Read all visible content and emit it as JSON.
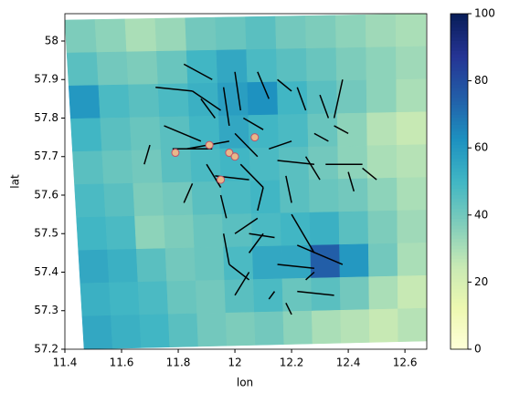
{
  "chart_data": {
    "type": "mesh",
    "xlabel": "lon",
    "ylabel": "lat",
    "xlim": [
      11.4,
      12.677
    ],
    "ylim": [
      57.2,
      58.071
    ],
    "xticks": [
      11.4,
      11.6,
      11.8,
      12.0,
      12.2,
      12.4,
      12.6
    ],
    "yticks": [
      57.2,
      57.3,
      57.4,
      57.5,
      57.6,
      57.7,
      57.8,
      57.9,
      58.0
    ],
    "colormap": "YlGnBu",
    "clim": [
      0,
      100
    ],
    "cticks": [
      0,
      20,
      40,
      60,
      80,
      100
    ],
    "grid": [
      [
        38,
        35,
        30,
        33,
        40,
        42,
        45,
        40,
        38,
        35,
        32,
        30
      ],
      [
        45,
        40,
        38,
        42,
        50,
        55,
        48,
        45,
        42,
        38,
        35,
        32
      ],
      [
        60,
        48,
        45,
        48,
        52,
        58,
        62,
        50,
        45,
        40,
        35,
        30
      ],
      [
        50,
        45,
        42,
        45,
        50,
        55,
        50,
        48,
        42,
        35,
        28,
        25
      ],
      [
        45,
        42,
        40,
        45,
        48,
        50,
        48,
        45,
        40,
        35,
        30,
        28
      ],
      [
        48,
        45,
        38,
        40,
        45,
        48,
        50,
        45,
        42,
        40,
        35,
        30
      ],
      [
        50,
        48,
        35,
        38,
        42,
        45,
        48,
        50,
        52,
        45,
        38,
        32
      ],
      [
        55,
        52,
        45,
        40,
        42,
        48,
        55,
        55,
        75,
        60,
        40,
        30
      ],
      [
        52,
        50,
        48,
        42,
        40,
        45,
        48,
        42,
        45,
        40,
        30,
        25
      ],
      [
        55,
        52,
        50,
        45,
        40,
        38,
        40,
        35,
        30,
        28,
        25,
        28
      ]
    ],
    "segment_color": "#000000",
    "segments": [
      [
        11.72,
        57.88,
        11.85,
        57.87
      ],
      [
        11.85,
        57.87,
        11.95,
        57.82
      ],
      [
        11.82,
        57.94,
        11.92,
        57.9
      ],
      [
        11.88,
        57.85,
        11.93,
        57.8
      ],
      [
        12.0,
        57.92,
        12.02,
        57.82
      ],
      [
        12.08,
        57.92,
        12.12,
        57.85
      ],
      [
        12.15,
        57.9,
        12.2,
        57.87
      ],
      [
        12.22,
        57.88,
        12.25,
        57.82
      ],
      [
        12.3,
        57.86,
        12.33,
        57.8
      ],
      [
        12.38,
        57.9,
        12.35,
        57.8
      ],
      [
        11.75,
        57.78,
        11.88,
        57.74
      ],
      [
        11.83,
        57.72,
        11.98,
        57.74
      ],
      [
        11.7,
        57.73,
        11.68,
        57.68
      ],
      [
        11.78,
        57.72,
        11.92,
        57.72
      ],
      [
        12.03,
        57.8,
        12.1,
        57.77
      ],
      [
        12.0,
        57.76,
        12.08,
        57.7
      ],
      [
        12.12,
        57.72,
        12.2,
        57.74
      ],
      [
        12.15,
        57.69,
        12.28,
        57.68
      ],
      [
        12.32,
        57.68,
        12.45,
        57.68
      ],
      [
        12.4,
        57.66,
        12.42,
        57.61
      ],
      [
        12.45,
        57.67,
        12.5,
        57.64
      ],
      [
        11.85,
        57.63,
        11.82,
        57.58
      ],
      [
        11.93,
        57.65,
        12.05,
        57.64
      ],
      [
        11.95,
        57.6,
        11.97,
        57.54
      ],
      [
        11.96,
        57.5,
        11.98,
        57.42
      ],
      [
        12.0,
        57.5,
        12.08,
        57.54
      ],
      [
        12.05,
        57.5,
        12.14,
        57.49
      ],
      [
        11.98,
        57.42,
        12.05,
        57.38
      ],
      [
        12.05,
        57.4,
        12.0,
        57.34
      ],
      [
        12.1,
        57.5,
        12.05,
        57.45
      ],
      [
        12.2,
        57.55,
        12.28,
        57.45
      ],
      [
        12.22,
        57.47,
        12.38,
        57.42
      ],
      [
        12.15,
        57.42,
        12.28,
        57.41
      ],
      [
        12.22,
        57.35,
        12.35,
        57.34
      ],
      [
        12.18,
        57.32,
        12.2,
        57.29
      ],
      [
        12.14,
        57.35,
        12.12,
        57.33
      ],
      [
        12.28,
        57.4,
        12.25,
        57.38
      ],
      [
        12.1,
        57.62,
        12.08,
        57.56
      ],
      [
        12.18,
        57.65,
        12.2,
        57.58
      ],
      [
        12.25,
        57.7,
        12.3,
        57.64
      ],
      [
        12.35,
        57.78,
        12.4,
        57.76
      ],
      [
        12.28,
        57.76,
        12.33,
        57.74
      ],
      [
        11.9,
        57.68,
        11.95,
        57.62
      ],
      [
        12.02,
        57.68,
        12.1,
        57.62
      ],
      [
        11.96,
        57.88,
        11.98,
        57.78
      ]
    ],
    "point_color": "#e8b88a",
    "points": [
      [
        11.79,
        57.71
      ],
      [
        11.91,
        57.73
      ],
      [
        11.98,
        57.71
      ],
      [
        12.0,
        57.7
      ],
      [
        12.07,
        57.75
      ],
      [
        11.95,
        57.64
      ]
    ]
  }
}
